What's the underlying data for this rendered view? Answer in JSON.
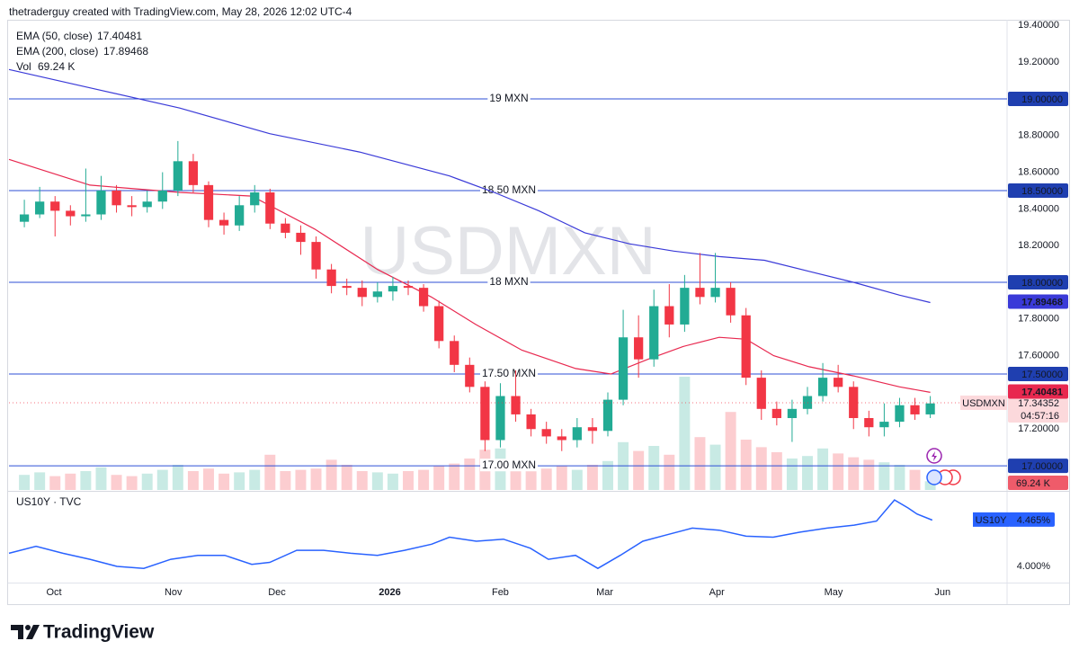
{
  "header": {
    "title": "thetraderguy created with TradingView.com, May 28, 2026 12:02 UTC-4"
  },
  "footer": {
    "logo": "TradingView"
  },
  "chart_data": [
    {
      "type": "candlestick",
      "watermark": "USDMXN",
      "symbol": "USDMXN",
      "up_color": "#22ab94",
      "down_color": "#f23645",
      "ohlc": [
        [
          18.33,
          18.45,
          18.3,
          18.37
        ],
        [
          18.37,
          18.52,
          18.35,
          18.44
        ],
        [
          18.44,
          18.47,
          18.25,
          18.39
        ],
        [
          18.39,
          18.42,
          18.31,
          18.36
        ],
        [
          18.36,
          18.62,
          18.33,
          18.37
        ],
        [
          18.37,
          18.58,
          18.34,
          18.5
        ],
        [
          18.5,
          18.53,
          18.38,
          18.42
        ],
        [
          18.42,
          18.47,
          18.36,
          18.41
        ],
        [
          18.41,
          18.5,
          18.38,
          18.44
        ],
        [
          18.44,
          18.6,
          18.4,
          18.5
        ],
        [
          18.5,
          18.77,
          18.47,
          18.66
        ],
        [
          18.66,
          18.7,
          18.49,
          18.53
        ],
        [
          18.53,
          18.55,
          18.3,
          18.34
        ],
        [
          18.34,
          18.38,
          18.26,
          18.31
        ],
        [
          18.31,
          18.47,
          18.28,
          18.42
        ],
        [
          18.42,
          18.53,
          18.38,
          18.49
        ],
        [
          18.49,
          18.51,
          18.29,
          18.32
        ],
        [
          18.32,
          18.35,
          18.24,
          18.27
        ],
        [
          18.27,
          18.31,
          18.15,
          18.22
        ],
        [
          18.22,
          18.25,
          18.02,
          18.07
        ],
        [
          18.07,
          18.1,
          17.94,
          17.98
        ],
        [
          17.98,
          18.02,
          17.93,
          17.97
        ],
        [
          17.97,
          18.01,
          17.87,
          17.92
        ],
        [
          17.92,
          18.0,
          17.89,
          17.95
        ],
        [
          17.95,
          18.03,
          17.9,
          17.98
        ],
        [
          17.98,
          18.01,
          17.93,
          17.97
        ],
        [
          17.97,
          17.99,
          17.84,
          17.87
        ],
        [
          17.87,
          17.9,
          17.64,
          17.68
        ],
        [
          17.68,
          17.71,
          17.51,
          17.55
        ],
        [
          17.55,
          17.59,
          17.4,
          17.43
        ],
        [
          17.43,
          17.46,
          17.08,
          17.14
        ],
        [
          17.14,
          17.45,
          17.1,
          17.38
        ],
        [
          17.38,
          17.52,
          17.24,
          17.28
        ],
        [
          17.28,
          17.31,
          17.16,
          17.2
        ],
        [
          17.2,
          17.24,
          17.12,
          17.16
        ],
        [
          17.16,
          17.2,
          17.08,
          17.14
        ],
        [
          17.14,
          17.26,
          17.1,
          17.21
        ],
        [
          17.21,
          17.26,
          17.12,
          17.19
        ],
        [
          17.19,
          17.4,
          17.16,
          17.36
        ],
        [
          17.36,
          17.85,
          17.33,
          17.7
        ],
        [
          17.7,
          17.82,
          17.48,
          17.58
        ],
        [
          17.58,
          17.96,
          17.54,
          17.87
        ],
        [
          17.87,
          17.99,
          17.7,
          17.77
        ],
        [
          17.77,
          18.04,
          17.73,
          17.97
        ],
        [
          17.97,
          18.16,
          17.88,
          17.92
        ],
        [
          17.92,
          18.16,
          17.89,
          17.97
        ],
        [
          17.97,
          18.0,
          17.78,
          17.82
        ],
        [
          17.82,
          17.86,
          17.44,
          17.48
        ],
        [
          17.48,
          17.52,
          17.25,
          17.31
        ],
        [
          17.31,
          17.35,
          17.22,
          17.26
        ],
        [
          17.26,
          17.36,
          17.13,
          17.31
        ],
        [
          17.31,
          17.43,
          17.28,
          17.38
        ],
        [
          17.38,
          17.56,
          17.35,
          17.48
        ],
        [
          17.48,
          17.55,
          17.4,
          17.43
        ],
        [
          17.43,
          17.46,
          17.2,
          17.26
        ],
        [
          17.26,
          17.3,
          17.16,
          17.21
        ],
        [
          17.21,
          17.34,
          17.16,
          17.24
        ],
        [
          17.24,
          17.37,
          17.21,
          17.33
        ],
        [
          17.33,
          17.37,
          17.25,
          17.28
        ],
        [
          17.28,
          17.38,
          17.26,
          17.34
        ]
      ],
      "volume": [
        120,
        140,
        110,
        130,
        150,
        180,
        120,
        110,
        130,
        160,
        200,
        150,
        170,
        130,
        140,
        160,
        280,
        150,
        160,
        170,
        240,
        200,
        150,
        140,
        130,
        150,
        160,
        190,
        210,
        250,
        320,
        330,
        220,
        180,
        170,
        190,
        160,
        200,
        230,
        380,
        310,
        350,
        280,
        900,
        420,
        360,
        620,
        400,
        340,
        300,
        250,
        270,
        330,
        290,
        260,
        240,
        220,
        200,
        160,
        69.24
      ],
      "volume_name": "Vol",
      "volume_last": {
        "value": 69.24,
        "label": "69.24 K"
      },
      "volume_lim": [
        0,
        1000
      ],
      "last_price": 17.34352,
      "countdown": "04:57:16",
      "xlim": [
        0,
        65
      ],
      "ylim": [
        16.868,
        19.431
      ],
      "yticks": [
        {
          "value": 19.4,
          "label": "19.40000"
        },
        {
          "value": 19.2,
          "label": "19.20000"
        },
        {
          "value": 18.8,
          "label": "18.80000"
        },
        {
          "value": 18.6,
          "label": "18.60000"
        },
        {
          "value": 18.4,
          "label": "18.40000"
        },
        {
          "value": 18.2,
          "label": "18.20000"
        },
        {
          "value": 17.8,
          "label": "17.80000"
        },
        {
          "value": 17.6,
          "label": "17.60000"
        },
        {
          "value": 17.2,
          "label": "17.20000"
        }
      ],
      "hlines": [
        {
          "value": 19,
          "label": "19 MXN",
          "price_label": "19.00000"
        },
        {
          "value": 18.5,
          "label": "18.50 MXN",
          "price_label": "18.50000"
        },
        {
          "value": 18,
          "label": "18 MXN",
          "price_label": "18.00000"
        },
        {
          "value": 17.5,
          "label": "17.50 MXN",
          "price_label": "17.50000"
        },
        {
          "value": 17,
          "label": "17.00 MXN",
          "price_label": "17.00000"
        }
      ],
      "hline_color": "#2c4fd6",
      "emas": [
        {
          "name": "EMA (50, close)",
          "color": "#e8284f",
          "last": 17.40481,
          "x": [
            0,
            5.27,
            11.12,
            15.81,
            19.91,
            24.0,
            27.5,
            30.4,
            33.4,
            36.9,
            39.2,
            41.6,
            43.9,
            46.25,
            48.0,
            49.8,
            52.1,
            55.0,
            58.0,
            60.0
          ],
          "values": [
            18.67,
            18.53,
            18.49,
            18.47,
            18.29,
            18.07,
            17.92,
            17.77,
            17.63,
            17.53,
            17.5,
            17.58,
            17.65,
            17.7,
            17.69,
            17.6,
            17.54,
            17.49,
            17.43,
            17.4
          ]
        },
        {
          "name": "EMA (200, close)",
          "color": "#3a3ad8",
          "last": 17.89468,
          "x": [
            0,
            5.27,
            11.12,
            16.98,
            22.83,
            28.69,
            31.6,
            34.5,
            37.5,
            40.4,
            43.3,
            46.25,
            49.2,
            52.1,
            55.0,
            58.0,
            60.0
          ],
          "values": [
            19.16,
            19.06,
            18.95,
            18.81,
            18.71,
            18.58,
            18.49,
            18.39,
            18.27,
            18.21,
            18.17,
            18.14,
            18.12,
            18.06,
            18.0,
            17.93,
            17.89
          ]
        }
      ]
    },
    {
      "type": "line",
      "title": "US10Y · TVC",
      "symbol": "US10Y",
      "color": "#2962ff",
      "x": [
        0,
        1.76,
        3.51,
        5.27,
        7.03,
        8.78,
        10.54,
        12.3,
        14.05,
        15.81,
        16.98,
        18.74,
        20.49,
        22.25,
        24.0,
        25.76,
        27.52,
        28.69,
        30.44,
        32.2,
        33.96,
        35.13,
        36.89,
        38.35,
        39.81,
        41.28,
        42.74,
        44.5,
        46.25,
        48.0,
        49.77,
        51.52,
        53.28,
        55.04,
        56.5,
        57.67,
        58.55,
        59.13,
        60.13
      ],
      "values": [
        4.13,
        4.2,
        4.13,
        4.07,
        4.0,
        3.98,
        4.07,
        4.11,
        4.11,
        4.02,
        4.04,
        4.16,
        4.16,
        4.13,
        4.11,
        4.16,
        4.22,
        4.29,
        4.25,
        4.27,
        4.18,
        4.07,
        4.11,
        3.98,
        4.11,
        4.25,
        4.31,
        4.38,
        4.36,
        4.3,
        4.29,
        4.34,
        4.38,
        4.41,
        4.45,
        4.66,
        4.58,
        4.52,
        4.46
      ],
      "last": {
        "value": 4.465,
        "label": "4.465%"
      },
      "xlim": [
        0,
        65
      ],
      "ylim": [
        3.839,
        4.732
      ],
      "yticks": [
        {
          "value": 4,
          "label": "4.000%"
        }
      ],
      "xticks": [
        {
          "value": 2.93,
          "label": "Oct"
        },
        {
          "value": 10.7,
          "label": "Nov"
        },
        {
          "value": 17.45,
          "label": "Dec"
        },
        {
          "value": 24.8,
          "label": "2026",
          "bold": true
        },
        {
          "value": 32.0,
          "label": "Feb"
        },
        {
          "value": 38.8,
          "label": "Mar"
        },
        {
          "value": 46.1,
          "label": "Apr"
        },
        {
          "value": 53.7,
          "label": "May"
        },
        {
          "value": 60.8,
          "label": "Jun"
        }
      ]
    }
  ]
}
